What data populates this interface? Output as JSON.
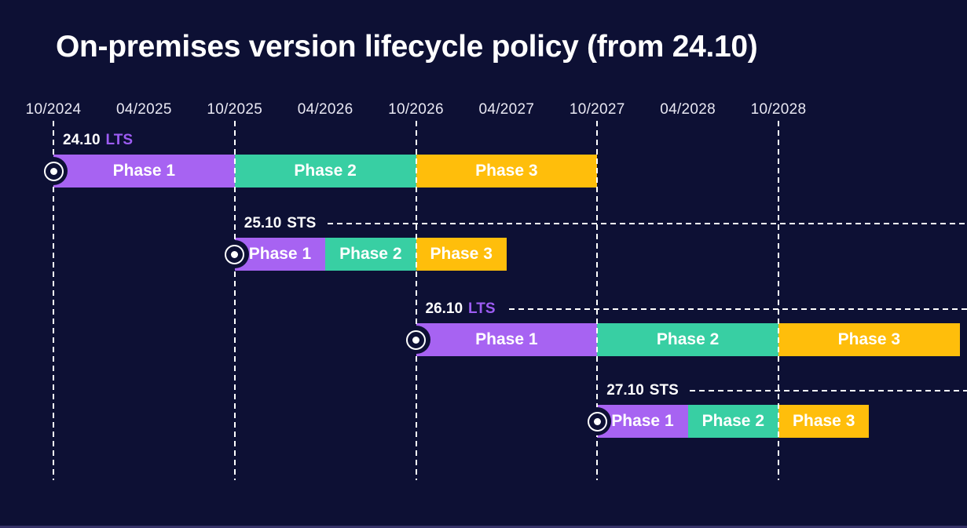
{
  "title": "On-premises version lifecycle policy (from 24.10)",
  "colors": {
    "background": "#0d1034",
    "title_text": "#ffffff",
    "axis_text": "#e9e8f3",
    "grid_dash": "#ffffff",
    "bar_text": "#ffffff",
    "version_text": "#ffffff",
    "lts_channel_text": "#9d5cf3",
    "sts_channel_text": "#ffffff",
    "phase1": "#a763f2",
    "phase2": "#38cfa3",
    "phase3": "#ffbe0b",
    "bottom_strip": "#343166"
  },
  "icons": {
    "start_marker": "circle-dot-icon"
  },
  "chart_data": {
    "type": "gantt",
    "title": "On-premises version lifecycle policy (from 24.10)",
    "x_axis": {
      "ticks": [
        "10/2024",
        "04/2025",
        "10/2025",
        "04/2026",
        "10/2026",
        "04/2027",
        "10/2027",
        "04/2028",
        "10/2028"
      ],
      "gridline_ticks": [
        "10/2024",
        "10/2025",
        "10/2026",
        "10/2027",
        "10/2028"
      ],
      "grid": "dashed-vertical"
    },
    "legend_position": "none",
    "rows": [
      {
        "version": "24.10",
        "channel": "LTS",
        "start_marker": true,
        "dashed_guide": false,
        "phases": [
          {
            "label": "Phase 1",
            "start": "10/2024",
            "end": "10/2025",
            "color": "phase1"
          },
          {
            "label": "Phase 2",
            "start": "10/2025",
            "end": "10/2026",
            "color": "phase2"
          },
          {
            "label": "Phase 3",
            "start": "10/2026",
            "end": "10/2027",
            "color": "phase3"
          }
        ]
      },
      {
        "version": "25.10",
        "channel": "STS",
        "start_marker": true,
        "dashed_guide": true,
        "phases": [
          {
            "label": "Phase 1",
            "start": "10/2025",
            "end": "04/2026",
            "color": "phase1"
          },
          {
            "label": "Phase 2",
            "start": "04/2026",
            "end": "10/2026",
            "color": "phase2"
          },
          {
            "label": "Phase 3",
            "start": "10/2026",
            "end": "04/2027",
            "color": "phase3"
          }
        ]
      },
      {
        "version": "26.10",
        "channel": "LTS",
        "start_marker": true,
        "dashed_guide": true,
        "phases": [
          {
            "label": "Phase 1",
            "start": "10/2026",
            "end": "10/2027",
            "color": "phase1"
          },
          {
            "label": "Phase 2",
            "start": "10/2027",
            "end": "10/2028",
            "color": "phase2"
          },
          {
            "label": "Phase 3",
            "start": "10/2028",
            "end": "10/2029",
            "color": "phase3"
          }
        ]
      },
      {
        "version": "27.10",
        "channel": "STS",
        "start_marker": true,
        "dashed_guide": true,
        "phases": [
          {
            "label": "Phase 1",
            "start": "10/2027",
            "end": "04/2028",
            "color": "phase1"
          },
          {
            "label": "Phase 2",
            "start": "04/2028",
            "end": "10/2028",
            "color": "phase2"
          },
          {
            "label": "Phase 3",
            "start": "10/2028",
            "end": "04/2029",
            "color": "phase3"
          }
        ]
      }
    ]
  }
}
